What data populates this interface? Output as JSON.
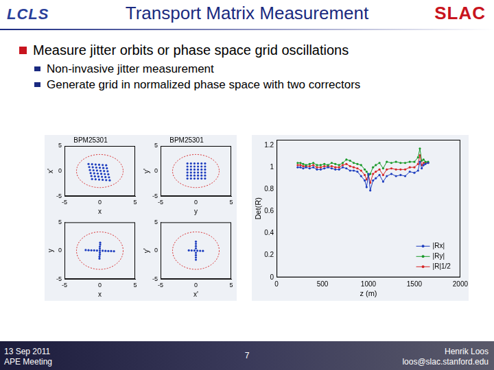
{
  "header": {
    "title": "Transport Matrix Measurement",
    "logo_left": "LCLS",
    "logo_right": "SLAC"
  },
  "bullets": [
    {
      "text": "Measure jitter orbits or phase space grid oscillations",
      "sub": [
        "Non-invasive jitter measurement",
        "Generate grid in normalized phase space with two correctors"
      ]
    }
  ],
  "footer": {
    "left": [
      "13 Sep 2011",
      "APE Meeting"
    ],
    "center": "7",
    "right": [
      "Henrik Loos",
      "loos@slac.stanford.edu"
    ]
  },
  "chart_data": [
    {
      "type": "scatter",
      "title": "BPM25301",
      "x_label": "x",
      "y_label": "x'",
      "xlim": [
        -5,
        5
      ],
      "ylim": [
        -5,
        5
      ],
      "xticks": [
        -5,
        0,
        5
      ],
      "yticks": [
        -5,
        0,
        5
      ],
      "grid": false,
      "circle": {
        "radius": 3.3,
        "color": "#d62728"
      },
      "series": [
        {
          "color": "#1f3fbf",
          "marker": "circle",
          "x": [
            -1.6,
            -1.1,
            -0.6,
            -0.1,
            0.4,
            0.9,
            -1.5,
            -1.0,
            -0.5,
            0.0,
            0.5,
            1.0,
            -1.4,
            -0.9,
            -0.4,
            0.1,
            0.6,
            1.1,
            -1.3,
            -0.8,
            -0.3,
            0.2,
            0.7,
            1.2,
            -1.2,
            -0.7,
            -0.2,
            0.3,
            0.8,
            1.3,
            -1.1,
            -0.6,
            -0.1,
            0.4,
            0.9,
            1.4
          ],
          "values": [
            1.4,
            1.35,
            1.3,
            1.25,
            1.2,
            1.15,
            0.8,
            0.75,
            0.7,
            0.65,
            0.6,
            0.55,
            0.2,
            0.15,
            0.1,
            0.05,
            0.0,
            -0.05,
            -0.4,
            -0.45,
            -0.5,
            -0.55,
            -0.6,
            -0.65,
            -1.0,
            -1.05,
            -1.1,
            -1.15,
            -1.2,
            -1.25,
            -1.6,
            -1.65,
            -1.7,
            -1.75,
            -1.8,
            -1.85
          ]
        }
      ]
    },
    {
      "type": "scatter",
      "title": "BPM25301",
      "x_label": "y",
      "y_label": "y'",
      "xlim": [
        -5,
        5
      ],
      "ylim": [
        -5,
        5
      ],
      "xticks": [
        -5,
        0,
        5
      ],
      "yticks": [
        -5,
        0,
        5
      ],
      "grid": false,
      "circle": {
        "radius": 3.3,
        "color": "#d62728"
      },
      "series": [
        {
          "color": "#1f3fbf",
          "marker": "circle",
          "x": [
            -1.2,
            -0.7,
            -0.2,
            0.3,
            0.8,
            1.3,
            -1.2,
            -0.7,
            -0.2,
            0.3,
            0.8,
            1.3,
            -1.2,
            -0.7,
            -0.2,
            0.3,
            0.8,
            1.3,
            -1.2,
            -0.7,
            -0.2,
            0.3,
            0.8,
            1.3,
            -1.2,
            -0.7,
            -0.2,
            0.3,
            0.8,
            1.3,
            -1.2,
            -0.7,
            -0.2,
            0.3,
            0.8,
            1.3
          ],
          "values": [
            1.5,
            1.5,
            1.5,
            1.5,
            1.5,
            1.5,
            0.9,
            0.9,
            0.9,
            0.9,
            0.9,
            0.9,
            0.3,
            0.3,
            0.3,
            0.3,
            0.3,
            0.3,
            -0.3,
            -0.3,
            -0.3,
            -0.3,
            -0.3,
            -0.3,
            -0.9,
            -0.9,
            -0.9,
            -0.9,
            -0.9,
            -0.9,
            -1.5,
            -1.5,
            -1.5,
            -1.5,
            -1.5,
            -1.5
          ]
        }
      ]
    },
    {
      "type": "scatter",
      "x_label": "x",
      "y_label": "y",
      "xlim": [
        -5,
        5
      ],
      "ylim": [
        -5,
        5
      ],
      "xticks": [
        -5,
        0,
        5
      ],
      "yticks": [
        -5,
        0,
        5
      ],
      "grid": false,
      "circle": {
        "radius": 3.3,
        "color": "#d62728"
      },
      "series": [
        {
          "color": "#1f3fbf",
          "marker": "circle",
          "x": [
            -2.0,
            -1.6,
            -1.2,
            -0.8,
            -0.4,
            0.0,
            0.4,
            0.8,
            1.2,
            1.6,
            2.0,
            0.05,
            0.05,
            0.0,
            0.0,
            0.0,
            0.0,
            -0.05,
            -0.05
          ],
          "values": [
            0.1,
            0.08,
            0.06,
            0.04,
            0.02,
            0.0,
            -0.02,
            -0.04,
            -0.06,
            -0.08,
            -0.1,
            1.4,
            1.05,
            0.7,
            0.35,
            -0.35,
            -0.7,
            -1.05,
            -1.4
          ]
        }
      ]
    },
    {
      "type": "scatter",
      "x_label": "x'",
      "y_label": "y'",
      "xlim": [
        -5,
        5
      ],
      "ylim": [
        -5,
        5
      ],
      "xticks": [
        -5,
        0,
        5
      ],
      "yticks": [
        -5,
        0,
        5
      ],
      "grid": false,
      "circle": {
        "radius": 3.3,
        "color": "#d62728"
      },
      "series": [
        {
          "color": "#1f3fbf",
          "marker": "circle",
          "x": [
            -1.0,
            -0.6,
            -0.2,
            0.2,
            0.6,
            1.0,
            0.0,
            0.0,
            0.0,
            0.0,
            0.0,
            0.0,
            0.0,
            0.0
          ],
          "values": [
            0.05,
            0.03,
            0.01,
            -0.01,
            -0.03,
            -0.05,
            1.6,
            1.2,
            0.8,
            0.4,
            -0.4,
            -0.8,
            -1.2,
            -1.6
          ]
        }
      ]
    },
    {
      "type": "line",
      "x_label": "z (m)",
      "y_label": "Det(R)",
      "xlim": [
        0,
        2000
      ],
      "ylim": [
        0,
        1.25
      ],
      "xticks": [
        0,
        500,
        1000,
        1500,
        2000
      ],
      "yticks": [
        0,
        0.2,
        0.4,
        0.6,
        0.8,
        1,
        1.2
      ],
      "grid": false,
      "legend": "lower right",
      "x": [
        230,
        260,
        290,
        320,
        360,
        400,
        440,
        480,
        520,
        560,
        600,
        640,
        680,
        720,
        760,
        800,
        840,
        880,
        920,
        960,
        980,
        1000,
        1020,
        1050,
        1080,
        1120,
        1160,
        1200,
        1250,
        1300,
        1350,
        1400,
        1450,
        1500,
        1540,
        1560,
        1580,
        1600,
        1620,
        1650
      ],
      "series": [
        {
          "name": "|Rx|",
          "color": "#1f3fbf",
          "marker": "circle",
          "line_style": "solid",
          "values": [
            1.0,
            1.0,
            0.99,
            1.0,
            0.99,
            1.0,
            0.98,
            0.98,
            0.99,
            1.0,
            0.99,
            0.98,
            0.98,
            1.0,
            0.99,
            0.97,
            0.97,
            0.96,
            0.92,
            0.88,
            0.82,
            0.94,
            0.79,
            0.88,
            0.9,
            0.93,
            0.87,
            0.92,
            0.94,
            0.92,
            0.93,
            0.92,
            0.96,
            0.95,
            0.97,
            1.05,
            0.99,
            1.02,
            1.03,
            1.04
          ]
        },
        {
          "name": "|Ry|",
          "color": "#1a9a2a",
          "marker": "circle",
          "line_style": "solid",
          "values": [
            1.04,
            1.04,
            1.03,
            1.02,
            1.03,
            1.04,
            1.02,
            1.02,
            1.03,
            1.02,
            1.04,
            1.03,
            1.02,
            1.04,
            1.07,
            1.06,
            1.04,
            1.03,
            1.02,
            0.98,
            0.96,
            0.93,
            0.94,
            1.0,
            1.02,
            1.04,
            0.99,
            1.05,
            1.04,
            1.05,
            1.04,
            1.04,
            1.05,
            1.05,
            1.09,
            1.17,
            1.06,
            1.07,
            1.05,
            1.05
          ]
        },
        {
          "name": "|R|1/2",
          "color": "#d62728",
          "marker": "circle",
          "line_style": "solid",
          "values": [
            1.02,
            1.02,
            1.01,
            1.01,
            1.01,
            1.02,
            1.0,
            1.0,
            1.01,
            1.01,
            1.01,
            1.0,
            1.0,
            1.02,
            1.03,
            1.01,
            1.0,
            0.99,
            0.97,
            0.93,
            0.89,
            0.93,
            0.86,
            0.94,
            0.96,
            0.98,
            0.93,
            0.98,
            0.99,
            0.98,
            0.98,
            0.98,
            1.0,
            1.0,
            1.03,
            1.11,
            1.02,
            1.04,
            1.04,
            1.04
          ]
        }
      ]
    }
  ]
}
